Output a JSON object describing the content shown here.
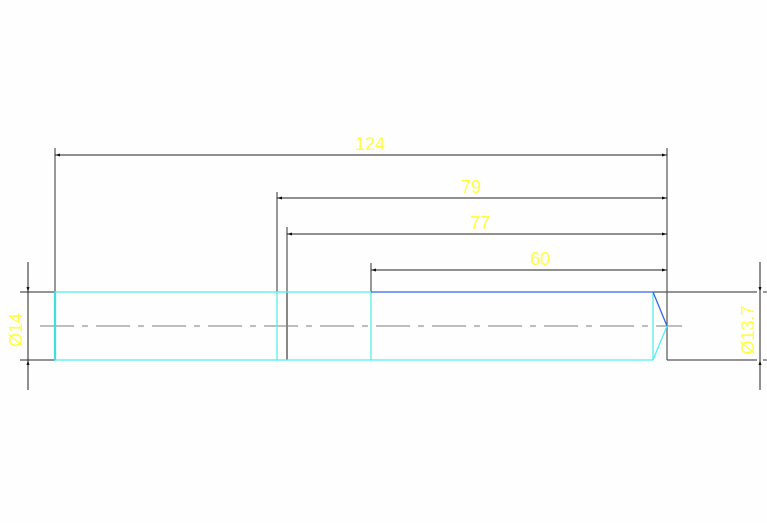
{
  "drawing": {
    "dimensions": {
      "overall_length": "124",
      "length_79": "79",
      "length_77": "77",
      "length_60": "60",
      "diameter_left": "Ø14",
      "diameter_right": "Ø13.7"
    },
    "colors": {
      "background": "#fdfefd",
      "dimension_text": "#ffff44",
      "dimension_lines": "#333333",
      "part_outline_cyan": "#55eeee",
      "part_outline_blue": "#3366ee",
      "centerline": "#999999"
    }
  }
}
